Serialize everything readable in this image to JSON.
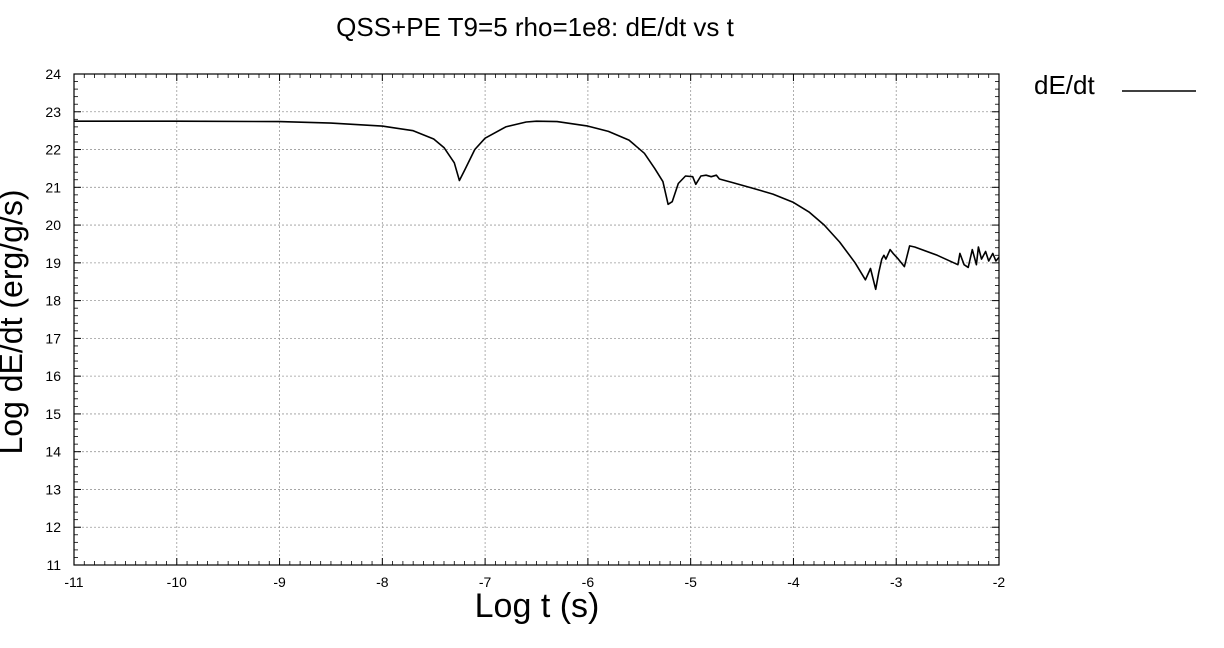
{
  "chart_data": {
    "type": "line",
    "title": "QSS+PE T9=5 rho=1e8: dE/dt vs t",
    "xlabel": "Log t (s)",
    "ylabel": "Log dE/dt (erg/g/s)",
    "xlim": [
      -11,
      -2
    ],
    "ylim": [
      11,
      24
    ],
    "xticks": [
      -11,
      -10,
      -9,
      -8,
      -7,
      -6,
      -5,
      -4,
      -3,
      -2
    ],
    "yticks": [
      11,
      12,
      13,
      14,
      15,
      16,
      17,
      18,
      19,
      20,
      21,
      22,
      23,
      24
    ],
    "grid": true,
    "legend_position": "top-right, outside plot",
    "series": [
      {
        "name": "dE/dt",
        "color": "#000000",
        "x": [
          -11,
          -10,
          -9,
          -8.5,
          -8,
          -7.7,
          -7.5,
          -7.4,
          -7.3,
          -7.25,
          -7.2,
          -7.1,
          -7.0,
          -6.8,
          -6.6,
          -6.5,
          -6.3,
          -6.0,
          -5.8,
          -5.6,
          -5.45,
          -5.35,
          -5.27,
          -5.22,
          -5.18,
          -5.12,
          -5.05,
          -4.98,
          -4.95,
          -4.9,
          -4.85,
          -4.8,
          -4.75,
          -4.72,
          -4.6,
          -4.4,
          -4.2,
          -4.0,
          -3.85,
          -3.7,
          -3.55,
          -3.4,
          -3.3,
          -3.25,
          -3.2,
          -3.17,
          -3.14,
          -3.12,
          -3.1,
          -3.06,
          -3.03,
          -2.98,
          -2.92,
          -2.87,
          -2.82,
          -2.6,
          -2.4,
          -2.38,
          -2.34,
          -2.3,
          -2.26,
          -2.22,
          -2.2,
          -2.17,
          -2.13,
          -2.1,
          -2.06,
          -2.03,
          -2.0
        ],
        "y": [
          22.75,
          22.75,
          22.74,
          22.7,
          22.62,
          22.5,
          22.28,
          22.05,
          21.65,
          21.18,
          21.45,
          22.0,
          22.3,
          22.6,
          22.73,
          22.75,
          22.74,
          22.62,
          22.48,
          22.25,
          21.9,
          21.5,
          21.15,
          20.55,
          20.62,
          21.1,
          21.3,
          21.28,
          21.08,
          21.3,
          21.32,
          21.28,
          21.32,
          21.22,
          21.13,
          20.98,
          20.82,
          20.6,
          20.35,
          20.0,
          19.55,
          19.0,
          18.55,
          18.85,
          18.3,
          18.75,
          19.1,
          19.2,
          19.1,
          19.35,
          19.25,
          19.1,
          18.9,
          19.45,
          19.42,
          19.2,
          18.95,
          19.25,
          18.95,
          18.88,
          19.35,
          18.95,
          19.42,
          19.1,
          19.3,
          19.05,
          19.25,
          19.05,
          19.15
        ]
      }
    ]
  }
}
